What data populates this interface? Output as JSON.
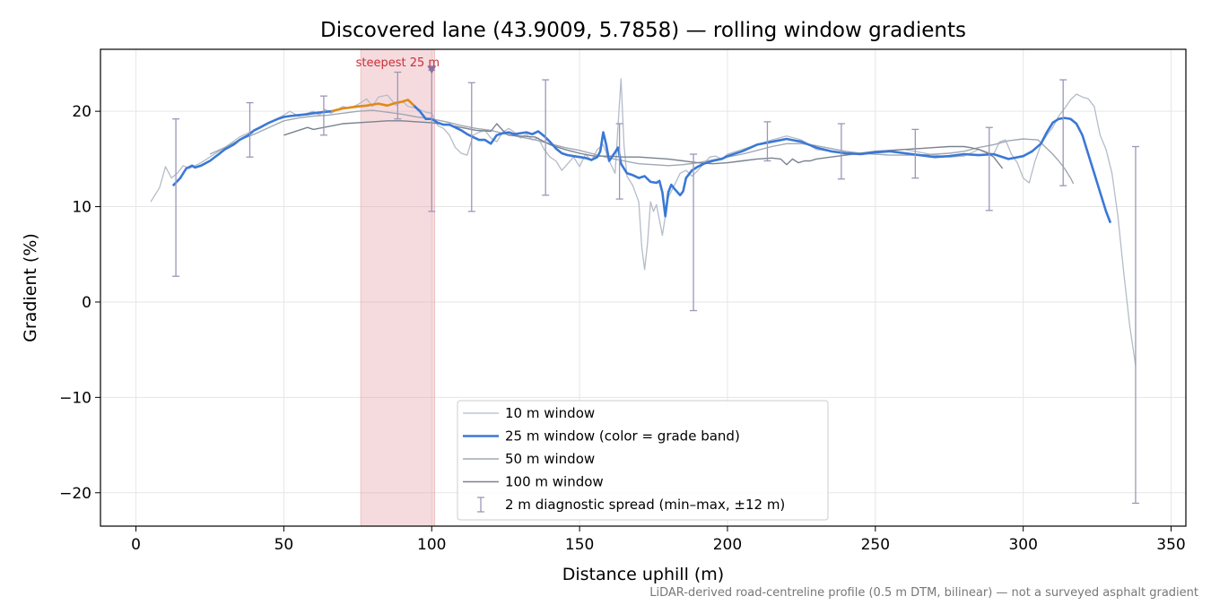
{
  "chart_data": {
    "type": "line",
    "title": "Discovered lane (43.9009, 5.7858) — rolling window gradients",
    "xlabel": "Distance uphill (m)",
    "ylabel": "Gradient (%)",
    "xlim": [
      -12,
      355
    ],
    "ylim": [
      -23.5,
      26.5
    ],
    "xticks": [
      0,
      50,
      100,
      150,
      200,
      250,
      300,
      350
    ],
    "yticks": [
      -20,
      -10,
      0,
      10,
      20
    ],
    "xtick_labels": [
      "0",
      "50",
      "100",
      "150",
      "200",
      "250",
      "300",
      "350"
    ],
    "ytick_labels": [
      "−20",
      "−10",
      "0",
      "10",
      "20"
    ],
    "grid": true,
    "legend_position": "lower-center",
    "footnote": "LiDAR-derived road-centreline profile (0.5 m DTM, bilinear) — not a surveyed asphalt gradient",
    "highlight": {
      "x0": 76,
      "x1": 101,
      "label": "steepest 25 m",
      "marker_x": 100,
      "marker_y": 24.3,
      "color": "#e8a0a8"
    },
    "series": [
      {
        "name": "10 m window",
        "color": "#b4bcc8",
        "width": 1.3,
        "x": [
          5,
          8,
          10,
          12,
          14,
          16,
          18,
          20,
          22,
          25,
          30,
          35,
          40,
          45,
          50,
          52,
          55,
          58,
          60,
          62,
          64,
          66,
          70,
          72,
          75,
          78,
          80,
          82,
          85,
          88,
          90,
          92,
          95,
          98,
          100,
          102,
          104,
          106,
          108,
          110,
          112,
          114,
          116,
          118,
          120,
          122,
          124,
          126,
          128,
          130,
          132,
          134,
          136,
          138,
          140,
          142,
          144,
          146,
          148,
          150,
          152,
          154,
          156,
          158,
          160,
          162,
          163,
          164,
          165,
          166,
          168,
          170,
          171,
          172,
          173,
          174,
          175,
          176,
          178,
          180,
          182,
          184,
          186,
          188,
          190,
          192,
          194,
          196,
          198,
          200,
          205,
          210,
          215,
          220,
          225,
          230,
          235,
          240,
          245,
          250,
          255,
          260,
          265,
          270,
          275,
          280,
          285,
          290,
          292,
          294,
          296,
          298,
          300,
          302,
          304,
          306,
          308,
          310,
          312,
          314,
          316,
          318,
          320,
          322,
          324,
          326,
          328,
          330,
          332,
          334,
          336,
          338
        ],
        "y": [
          10.5,
          12,
          14.2,
          13,
          13.5,
          14.3,
          14,
          14.3,
          14.6,
          15.2,
          16.2,
          17.3,
          18,
          18.8,
          19.6,
          20,
          19.5,
          19.8,
          20,
          19.6,
          20.2,
          19.8,
          20.5,
          20.3,
          20.7,
          21.3,
          20.5,
          21.5,
          21.7,
          20.6,
          21.1,
          20.5,
          20.3,
          19.9,
          19.8,
          18.5,
          18.2,
          17.5,
          16.2,
          15.6,
          15.4,
          17.5,
          17.8,
          18.0,
          17.2,
          16.8,
          17.8,
          18.2,
          17.8,
          17.2,
          17.6,
          17.0,
          17.2,
          16.0,
          15.2,
          14.8,
          13.8,
          14.5,
          15.2,
          14.2,
          15.5,
          14.8,
          16.0,
          16.5,
          14.8,
          13.5,
          18.5,
          23.4,
          16.5,
          13.2,
          12.2,
          10.5,
          5.8,
          3.4,
          6.2,
          10.5,
          9.5,
          10.2,
          7.0,
          11.0,
          12.2,
          13.5,
          13.8,
          13.2,
          13.8,
          14.5,
          15.2,
          15.3,
          15.0,
          15.5,
          16.0,
          16.5,
          17.0,
          17.4,
          17.0,
          16.0,
          15.8,
          15.5,
          15.6,
          15.8,
          15.9,
          16.0,
          15.7,
          15.4,
          15.2,
          15.3,
          16.0,
          15.5,
          16.8,
          17.0,
          15.5,
          14.6,
          13.0,
          12.5,
          14.8,
          16.5,
          17.5,
          18.3,
          19.5,
          20.3,
          21.2,
          21.8,
          21.5,
          21.3,
          20.5,
          17.5,
          16.0,
          13.5,
          9.0,
          3.0,
          -2.5,
          -6.7
        ]
      },
      {
        "name": "25 m window (color = grade band)",
        "color": "#3a78d6",
        "band_color": "#e08a18",
        "band_range": [
          66,
          94
        ],
        "width": 2.6,
        "x": [
          12.5,
          15,
          17,
          19,
          20,
          22,
          25,
          28,
          30,
          33,
          35,
          38,
          40,
          42,
          45,
          48,
          50,
          52,
          55,
          58,
          60,
          63,
          66,
          70,
          75,
          78,
          82,
          85,
          88,
          90,
          92,
          94,
          96,
          98,
          100,
          102,
          104,
          106,
          108,
          110,
          112,
          114,
          116,
          118,
          120,
          122,
          124,
          126,
          128,
          130,
          132,
          134,
          136,
          138,
          140,
          142,
          144,
          146,
          148,
          150,
          152,
          154,
          156,
          157,
          158,
          159,
          160,
          162,
          163,
          164,
          165,
          166,
          168,
          170,
          172,
          174,
          176,
          177,
          178,
          179,
          180,
          181,
          182,
          184,
          185,
          186,
          188,
          190,
          192,
          195,
          198,
          200,
          205,
          210,
          215,
          220,
          225,
          230,
          235,
          240,
          245,
          250,
          255,
          260,
          265,
          270,
          275,
          280,
          285,
          290,
          295,
          300,
          303,
          306,
          308,
          310,
          312,
          314,
          316,
          318,
          320,
          322,
          324,
          326,
          328,
          329.5
        ],
        "y": [
          12.2,
          13.0,
          14.0,
          14.3,
          14.1,
          14.3,
          14.8,
          15.5,
          16.0,
          16.5,
          17.0,
          17.5,
          18.0,
          18.3,
          18.8,
          19.2,
          19.4,
          19.5,
          19.6,
          19.7,
          19.8,
          19.9,
          20.0,
          20.3,
          20.5,
          20.6,
          20.8,
          20.6,
          20.9,
          21.0,
          21.2,
          20.6,
          20.0,
          19.2,
          19.2,
          18.8,
          18.6,
          18.6,
          18.3,
          18.0,
          17.6,
          17.3,
          17.0,
          17.0,
          16.6,
          17.5,
          17.7,
          17.8,
          17.6,
          17.7,
          17.8,
          17.6,
          17.9,
          17.4,
          16.8,
          16.1,
          15.6,
          15.4,
          15.3,
          15.2,
          15.1,
          14.9,
          15.2,
          15.8,
          17.8,
          16.5,
          14.8,
          15.7,
          16.2,
          14.5,
          14.0,
          13.5,
          13.3,
          13.0,
          13.2,
          12.6,
          12.5,
          12.7,
          11.5,
          9.0,
          11.5,
          12.3,
          11.9,
          11.2,
          11.6,
          13.0,
          13.8,
          14.2,
          14.5,
          14.8,
          15.0,
          15.3,
          15.8,
          16.5,
          16.8,
          17.1,
          16.8,
          16.2,
          15.8,
          15.6,
          15.5,
          15.7,
          15.8,
          15.6,
          15.4,
          15.2,
          15.3,
          15.5,
          15.4,
          15.5,
          15.0,
          15.3,
          15.8,
          16.6,
          17.8,
          18.8,
          19.2,
          19.3,
          19.2,
          18.7,
          17.5,
          15.5,
          13.5,
          11.5,
          9.5,
          8.3
        ]
      },
      {
        "name": "50 m window",
        "color": "#a0a8b4",
        "width": 1.4,
        "x": [
          25,
          30,
          35,
          40,
          45,
          50,
          55,
          60,
          65,
          70,
          75,
          80,
          85,
          90,
          95,
          100,
          105,
          110,
          115,
          120,
          125,
          130,
          135,
          140,
          145,
          150,
          155,
          160,
          165,
          170,
          175,
          180,
          185,
          190,
          195,
          200,
          205,
          210,
          215,
          220,
          225,
          230,
          235,
          240,
          245,
          250,
          255,
          260,
          265,
          270,
          275,
          280,
          285,
          290,
          295,
          300,
          305,
          310,
          312,
          314,
          316,
          317
        ],
        "y": [
          15.5,
          16.2,
          17.0,
          17.6,
          18.3,
          19.0,
          19.3,
          19.5,
          19.6,
          19.8,
          20.0,
          20.1,
          19.9,
          19.7,
          19.4,
          19.2,
          18.9,
          18.5,
          18.2,
          18.0,
          17.6,
          17.3,
          17.0,
          16.6,
          16.2,
          15.9,
          15.5,
          15.1,
          14.8,
          14.5,
          14.4,
          14.3,
          14.4,
          14.6,
          14.9,
          15.2,
          15.5,
          15.9,
          16.3,
          16.6,
          16.6,
          16.4,
          16.1,
          15.8,
          15.6,
          15.5,
          15.4,
          15.4,
          15.4,
          15.5,
          15.6,
          15.8,
          16.2,
          16.5,
          16.9,
          17.1,
          17.0,
          15.5,
          14.8,
          14.0,
          13.0,
          12.4
        ]
      },
      {
        "name": "100 m window",
        "color": "#7a8290",
        "width": 1.4,
        "x": [
          50,
          55,
          58,
          60,
          65,
          70,
          75,
          80,
          85,
          90,
          95,
          100,
          105,
          110,
          115,
          120,
          122,
          124,
          126,
          130,
          135,
          140,
          145,
          150,
          155,
          160,
          165,
          170,
          175,
          180,
          185,
          190,
          195,
          200,
          205,
          210,
          215,
          218,
          220,
          222,
          224,
          226,
          228,
          230,
          235,
          240,
          245,
          250,
          255,
          260,
          265,
          270,
          275,
          280,
          282,
          285,
          288,
          290,
          293
        ],
        "y": [
          17.5,
          18.0,
          18.3,
          18.1,
          18.4,
          18.7,
          18.8,
          18.9,
          19.0,
          19.0,
          18.9,
          18.8,
          18.6,
          18.3,
          18.0,
          17.9,
          18.7,
          18.0,
          17.5,
          17.4,
          17.3,
          16.5,
          16.0,
          15.6,
          15.3,
          15.3,
          15.2,
          15.2,
          15.1,
          15.0,
          14.8,
          14.6,
          14.5,
          14.6,
          14.8,
          15.0,
          15.1,
          15.0,
          14.4,
          15.0,
          14.6,
          14.8,
          14.8,
          15.0,
          15.2,
          15.4,
          15.6,
          15.8,
          15.9,
          16.0,
          16.1,
          16.2,
          16.3,
          16.3,
          16.2,
          16.0,
          15.6,
          15.2,
          14.0
        ]
      }
    ],
    "errorbars": {
      "name": "2 m diagnostic spread (min–max, ±12 m)",
      "color": "#9d96b8",
      "x": [
        13.5,
        38.5,
        63.5,
        88.5,
        100,
        113.5,
        138.5,
        163.5,
        188.5,
        213.5,
        238.5,
        263.5,
        288.5,
        313.5,
        338
      ],
      "ymin": [
        2.7,
        15.2,
        17.5,
        19.2,
        9.5,
        9.5,
        11.2,
        10.8,
        -0.9,
        14.8,
        12.9,
        13.0,
        9.6,
        12.2,
        -21.1
      ],
      "ymax": [
        19.2,
        20.9,
        21.6,
        24.1,
        24.3,
        23.0,
        23.3,
        18.7,
        15.5,
        18.9,
        18.7,
        18.1,
        18.3,
        23.3,
        16.3
      ]
    }
  }
}
